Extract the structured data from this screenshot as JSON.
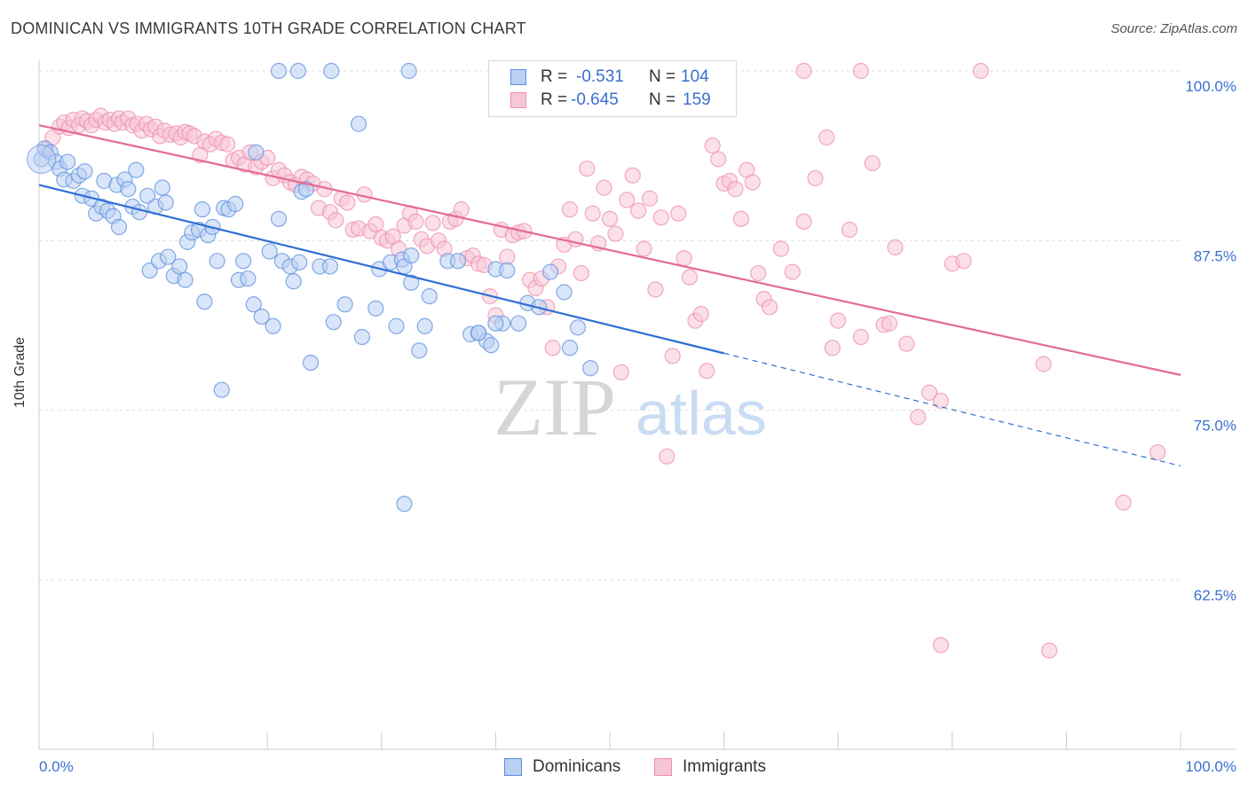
{
  "header": {
    "title": "DOMINICAN VS IMMIGRANTS 10TH GRADE CORRELATION CHART",
    "source": "Source: ZipAtlas.com"
  },
  "colors": {
    "blue": "#5b8fe0",
    "blue_fill": "#b9d0f3",
    "blue_line": "#2f6fd4",
    "pink": "#ec8fae",
    "pink_fill": "#f7c6d6",
    "pink_line": "#e46b93",
    "axis_text": "#3a6fcf",
    "grid": "#dddddd"
  },
  "legend_top": [
    {
      "r_label": "R =",
      "r_value": "-0.531",
      "n_label": "N =",
      "n_value": "104"
    },
    {
      "r_label": "R =",
      "r_value": "-0.645",
      "n_label": "N =",
      "n_value": "159"
    }
  ],
  "legend_bottom": [
    "Dominicans",
    "Immigrants"
  ],
  "watermark": {
    "zip": "ZIP",
    "atlas": "atlas"
  },
  "chart_data": {
    "type": "scatter",
    "title": "DOMINICAN VS IMMIGRANTS 10TH GRADE CORRELATION CHART",
    "xlabel": "",
    "ylabel": "10th Grade",
    "xlim": [
      0,
      100
    ],
    "ylim": [
      50,
      100
    ],
    "x_tick_labels": [
      "0.0%",
      "100.0%"
    ],
    "y_ticks": [
      62.5,
      75.0,
      87.5,
      100.0
    ],
    "y_tick_labels": [
      "62.5%",
      "75.0%",
      "87.5%",
      "100.0%"
    ],
    "grid": true,
    "legend_position": "top-center and bottom",
    "series": [
      {
        "name": "Dominicans",
        "r": -0.531,
        "n": 104,
        "trend": {
          "x0": 0,
          "y0": 91.6,
          "x1": 60,
          "y1": 79.2,
          "dashed_to_x": 100,
          "dashed_to_y": 70.9
        },
        "points": [
          [
            0.2,
            93.5
          ],
          [
            0.5,
            94.3
          ],
          [
            1.0,
            94.0
          ],
          [
            1.5,
            93.3
          ],
          [
            1.8,
            92.8
          ],
          [
            2.2,
            92.0
          ],
          [
            2.5,
            93.3
          ],
          [
            3.0,
            91.9
          ],
          [
            3.5,
            92.3
          ],
          [
            4.0,
            92.6
          ],
          [
            3.8,
            90.8
          ],
          [
            4.6,
            90.6
          ],
          [
            5.0,
            89.5
          ],
          [
            5.5,
            90.0
          ],
          [
            6.0,
            89.7
          ],
          [
            6.5,
            89.3
          ],
          [
            7.0,
            88.5
          ],
          [
            5.7,
            91.9
          ],
          [
            6.8,
            91.6
          ],
          [
            7.5,
            92.0
          ],
          [
            7.8,
            91.3
          ],
          [
            8.2,
            90.0
          ],
          [
            8.5,
            92.7
          ],
          [
            8.8,
            89.6
          ],
          [
            9.5,
            90.8
          ],
          [
            10.2,
            90.0
          ],
          [
            10.8,
            91.4
          ],
          [
            11.1,
            90.3
          ],
          [
            9.7,
            85.3
          ],
          [
            10.5,
            86.0
          ],
          [
            11.3,
            86.3
          ],
          [
            11.8,
            84.9
          ],
          [
            12.3,
            85.6
          ],
          [
            12.8,
            84.6
          ],
          [
            13.0,
            87.4
          ],
          [
            13.4,
            88.1
          ],
          [
            14.0,
            88.3
          ],
          [
            14.3,
            89.8
          ],
          [
            14.8,
            87.9
          ],
          [
            15.2,
            88.5
          ],
          [
            14.5,
            83.0
          ],
          [
            15.6,
            86.0
          ],
          [
            16.2,
            89.9
          ],
          [
            16.6,
            89.8
          ],
          [
            17.2,
            90.2
          ],
          [
            17.5,
            84.6
          ],
          [
            17.9,
            86.0
          ],
          [
            18.3,
            84.7
          ],
          [
            18.8,
            82.8
          ],
          [
            19.5,
            81.9
          ],
          [
            20.2,
            86.7
          ],
          [
            20.5,
            81.2
          ],
          [
            21.3,
            86.0
          ],
          [
            22.0,
            85.6
          ],
          [
            22.3,
            84.5
          ],
          [
            22.8,
            85.9
          ],
          [
            21.0,
            89.1
          ],
          [
            23.0,
            91.1
          ],
          [
            23.4,
            91.3
          ],
          [
            19.0,
            94.0
          ],
          [
            16.0,
            76.5
          ],
          [
            23.8,
            78.5
          ],
          [
            24.6,
            85.6
          ],
          [
            25.5,
            85.6
          ],
          [
            25.8,
            81.5
          ],
          [
            26.8,
            82.8
          ],
          [
            28.3,
            80.4
          ],
          [
            29.5,
            82.5
          ],
          [
            29.8,
            85.4
          ],
          [
            30.8,
            85.9
          ],
          [
            31.8,
            86.1
          ],
          [
            31.3,
            81.2
          ],
          [
            32.0,
            85.6
          ],
          [
            32.6,
            84.4
          ],
          [
            32.6,
            86.4
          ],
          [
            33.3,
            79.4
          ],
          [
            33.8,
            81.2
          ],
          [
            34.2,
            83.4
          ],
          [
            35.8,
            86.0
          ],
          [
            36.7,
            86.0
          ],
          [
            37.8,
            80.6
          ],
          [
            38.5,
            80.7
          ],
          [
            39.2,
            80.1
          ],
          [
            39.6,
            79.8
          ],
          [
            40.0,
            85.4
          ],
          [
            40.6,
            81.4
          ],
          [
            41.0,
            85.3
          ],
          [
            42.0,
            81.4
          ],
          [
            42.8,
            82.9
          ],
          [
            43.8,
            82.6
          ],
          [
            44.8,
            85.2
          ],
          [
            46.0,
            83.7
          ],
          [
            46.5,
            79.6
          ],
          [
            47.2,
            81.1
          ],
          [
            48.3,
            78.1
          ],
          [
            21.0,
            100.0
          ],
          [
            22.7,
            100.0
          ],
          [
            25.6,
            100.0
          ],
          [
            32.4,
            100.0
          ],
          [
            28.0,
            96.1
          ],
          [
            32.0,
            68.1
          ],
          [
            38.5,
            80.7
          ],
          [
            40.0,
            81.4
          ]
        ]
      },
      {
        "name": "Immigrants",
        "r": -0.645,
        "n": 159,
        "trend": {
          "x0": 0,
          "y0": 96.0,
          "x1": 100,
          "y1": 77.6
        },
        "points": [
          [
            0.6,
            94.2
          ],
          [
            1.2,
            95.1
          ],
          [
            1.8,
            95.9
          ],
          [
            2.2,
            96.2
          ],
          [
            2.6,
            95.8
          ],
          [
            3.0,
            96.4
          ],
          [
            3.5,
            96.0
          ],
          [
            3.8,
            96.5
          ],
          [
            4.2,
            96.3
          ],
          [
            4.6,
            96.0
          ],
          [
            5.0,
            96.4
          ],
          [
            5.4,
            96.7
          ],
          [
            5.8,
            96.2
          ],
          [
            6.2,
            96.4
          ],
          [
            6.6,
            96.1
          ],
          [
            7.0,
            96.5
          ],
          [
            7.3,
            96.2
          ],
          [
            7.8,
            96.5
          ],
          [
            8.2,
            96.0
          ],
          [
            8.6,
            96.1
          ],
          [
            9.0,
            95.6
          ],
          [
            9.4,
            96.1
          ],
          [
            9.8,
            95.7
          ],
          [
            10.2,
            95.9
          ],
          [
            10.6,
            95.2
          ],
          [
            11.0,
            95.6
          ],
          [
            11.5,
            95.3
          ],
          [
            12.0,
            95.4
          ],
          [
            12.4,
            95.1
          ],
          [
            12.8,
            95.5
          ],
          [
            13.2,
            95.4
          ],
          [
            13.6,
            95.2
          ],
          [
            14.1,
            93.8
          ],
          [
            14.5,
            94.8
          ],
          [
            15.0,
            94.6
          ],
          [
            15.5,
            95.0
          ],
          [
            16.0,
            94.7
          ],
          [
            16.5,
            94.6
          ],
          [
            17.0,
            93.4
          ],
          [
            17.5,
            93.6
          ],
          [
            18.0,
            93.1
          ],
          [
            18.5,
            94.0
          ],
          [
            19.0,
            92.9
          ],
          [
            19.5,
            93.3
          ],
          [
            20.0,
            93.6
          ],
          [
            20.5,
            92.1
          ],
          [
            21.0,
            92.7
          ],
          [
            21.5,
            92.3
          ],
          [
            22.0,
            91.8
          ],
          [
            22.5,
            91.6
          ],
          [
            23.0,
            92.2
          ],
          [
            23.5,
            92.0
          ],
          [
            24.0,
            91.7
          ],
          [
            24.5,
            89.9
          ],
          [
            25.0,
            91.3
          ],
          [
            25.5,
            89.6
          ],
          [
            26.0,
            89.0
          ],
          [
            26.5,
            90.6
          ],
          [
            27.0,
            90.3
          ],
          [
            27.5,
            88.3
          ],
          [
            28.0,
            88.4
          ],
          [
            28.5,
            90.9
          ],
          [
            29.0,
            88.2
          ],
          [
            29.5,
            88.7
          ],
          [
            30.0,
            87.7
          ],
          [
            30.5,
            87.5
          ],
          [
            31.0,
            87.8
          ],
          [
            31.5,
            86.9
          ],
          [
            32.0,
            88.6
          ],
          [
            32.5,
            89.5
          ],
          [
            33.0,
            88.9
          ],
          [
            33.5,
            87.6
          ],
          [
            34.0,
            87.1
          ],
          [
            34.5,
            88.8
          ],
          [
            35.0,
            87.5
          ],
          [
            35.5,
            86.9
          ],
          [
            36.0,
            88.9
          ],
          [
            36.5,
            89.1
          ],
          [
            37.0,
            89.8
          ],
          [
            37.5,
            86.2
          ],
          [
            38.0,
            86.4
          ],
          [
            38.5,
            85.8
          ],
          [
            39.0,
            85.7
          ],
          [
            39.5,
            83.4
          ],
          [
            40.0,
            82.0
          ],
          [
            40.5,
            88.3
          ],
          [
            41.0,
            86.3
          ],
          [
            41.5,
            87.9
          ],
          [
            42.0,
            88.1
          ],
          [
            42.5,
            88.2
          ],
          [
            43.0,
            84.6
          ],
          [
            43.5,
            84.0
          ],
          [
            44.0,
            84.7
          ],
          [
            44.5,
            82.6
          ],
          [
            45.0,
            79.6
          ],
          [
            45.5,
            85.6
          ],
          [
            46.0,
            87.2
          ],
          [
            46.5,
            89.8
          ],
          [
            47.0,
            87.6
          ],
          [
            47.5,
            85.1
          ],
          [
            48.0,
            92.8
          ],
          [
            48.5,
            89.5
          ],
          [
            49.0,
            87.3
          ],
          [
            49.5,
            91.4
          ],
          [
            50.0,
            89.1
          ],
          [
            50.5,
            88.0
          ],
          [
            51.0,
            77.8
          ],
          [
            51.5,
            90.5
          ],
          [
            52.0,
            92.3
          ],
          [
            52.5,
            89.7
          ],
          [
            53.0,
            86.9
          ],
          [
            53.5,
            90.6
          ],
          [
            54.0,
            83.9
          ],
          [
            54.5,
            89.2
          ],
          [
            55.0,
            71.6
          ],
          [
            55.5,
            79.0
          ],
          [
            56.0,
            89.5
          ],
          [
            56.5,
            86.2
          ],
          [
            57.0,
            84.8
          ],
          [
            57.5,
            81.6
          ],
          [
            58.0,
            82.1
          ],
          [
            58.5,
            77.9
          ],
          [
            59.0,
            94.5
          ],
          [
            59.5,
            93.5
          ],
          [
            60.0,
            91.7
          ],
          [
            60.5,
            91.9
          ],
          [
            61.0,
            91.3
          ],
          [
            61.5,
            89.1
          ],
          [
            62.0,
            92.7
          ],
          [
            62.5,
            91.8
          ],
          [
            63.0,
            85.1
          ],
          [
            63.5,
            83.2
          ],
          [
            64.0,
            82.6
          ],
          [
            65.0,
            86.9
          ],
          [
            66.0,
            85.2
          ],
          [
            67.0,
            88.9
          ],
          [
            68.0,
            92.1
          ],
          [
            69.0,
            95.1
          ],
          [
            69.5,
            79.6
          ],
          [
            70.0,
            81.6
          ],
          [
            71.0,
            88.3
          ],
          [
            72.0,
            80.4
          ],
          [
            73.0,
            93.2
          ],
          [
            74.0,
            81.3
          ],
          [
            74.5,
            81.4
          ],
          [
            75.0,
            87.0
          ],
          [
            76.0,
            79.9
          ],
          [
            77.0,
            74.5
          ],
          [
            78.0,
            76.3
          ],
          [
            79.0,
            75.7
          ],
          [
            80.0,
            85.8
          ],
          [
            81.0,
            86.0
          ],
          [
            88.0,
            78.4
          ],
          [
            95.0,
            68.2
          ],
          [
            98.0,
            71.9
          ],
          [
            67.0,
            100.0
          ],
          [
            72.0,
            100.0
          ],
          [
            82.5,
            100.0
          ],
          [
            79.0,
            57.7
          ],
          [
            88.5,
            57.3
          ]
        ]
      }
    ]
  }
}
